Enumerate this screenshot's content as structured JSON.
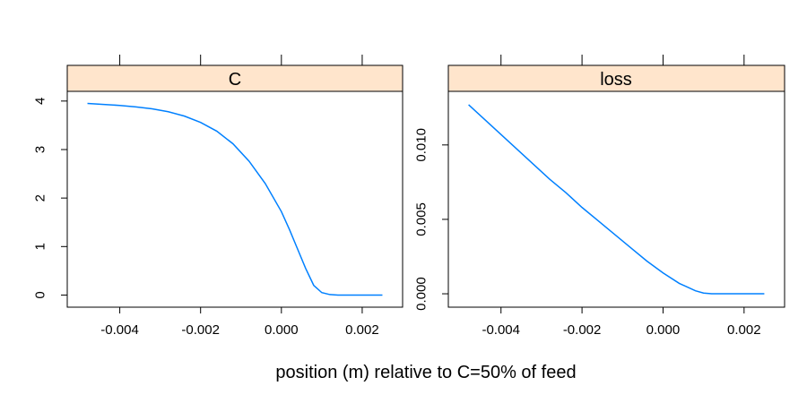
{
  "chart_data": {
    "type": "line",
    "xlabel": "position (m) relative to C=50% of feed",
    "xlim": [
      -0.0053,
      0.003
    ],
    "xticks": [
      -0.004,
      -0.002,
      0.0,
      0.002
    ],
    "xtick_labels": [
      "-0.004",
      "-0.002",
      "0.000",
      "0.002"
    ],
    "grid": false,
    "panels": [
      {
        "strip": "C",
        "ylim": [
          -0.25,
          4.2
        ],
        "yticks": [
          0,
          1,
          2,
          3,
          4
        ],
        "ytick_labels": [
          "0",
          "1",
          "2",
          "3",
          "4"
        ],
        "line_color": "#0080ff",
        "x": [
          -0.0048,
          -0.0044,
          -0.004,
          -0.0036,
          -0.0032,
          -0.0028,
          -0.0024,
          -0.002,
          -0.0016,
          -0.0012,
          -0.0008,
          -0.0004,
          0.0,
          0.0002,
          0.0004,
          0.0006,
          0.0008,
          0.001,
          0.0012,
          0.0014,
          0.0016,
          0.002,
          0.0025
        ],
        "y": [
          3.95,
          3.93,
          3.91,
          3.88,
          3.84,
          3.78,
          3.69,
          3.56,
          3.38,
          3.12,
          2.76,
          2.3,
          1.72,
          1.35,
          0.95,
          0.55,
          0.2,
          0.05,
          0.01,
          0.0,
          0.0,
          0.0,
          0.0
        ]
      },
      {
        "strip": "loss",
        "ylim": [
          -0.0009,
          0.0136
        ],
        "yticks": [
          0.0,
          0.005,
          0.01
        ],
        "ytick_labels": [
          "0.000",
          "0.005",
          "0.010"
        ],
        "line_color": "#0080ff",
        "x": [
          -0.0048,
          -0.0044,
          -0.004,
          -0.0036,
          -0.0032,
          -0.0028,
          -0.0024,
          -0.002,
          -0.0016,
          -0.0012,
          -0.0008,
          -0.0004,
          0.0,
          0.0004,
          0.0008,
          0.001,
          0.0012,
          0.0016,
          0.002,
          0.0025
        ],
        "y": [
          0.0127,
          0.0117,
          0.0107,
          0.0097,
          0.0087,
          0.0077,
          0.0068,
          0.0058,
          0.0049,
          0.004,
          0.0031,
          0.0022,
          0.0014,
          0.0007,
          0.0002,
          5e-05,
          0.0,
          0.0,
          0.0,
          0.0
        ]
      }
    ]
  }
}
